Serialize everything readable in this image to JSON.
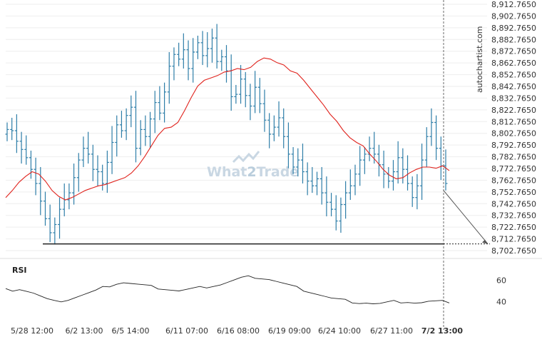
{
  "watermark": {
    "brand": "autochartist.com",
    "text_a": "What",
    "text_b": "2",
    "text_c": "Trade",
    "color": "#c9d7e3"
  },
  "rsi_panel": {
    "label": "RSI",
    "ticks": [
      "60",
      "40"
    ],
    "values": [
      60,
      40
    ]
  },
  "colors": {
    "candle": "#2e7ea8",
    "ma": "#e0231d",
    "rsi": "#222222",
    "support": "#222222",
    "arrow": "#555555",
    "grid": "#eeeeee",
    "axis_text": "#333333"
  },
  "chart_data": [
    {
      "type": "line",
      "title": "",
      "xlabel": "",
      "ylabel": "",
      "price_type": "ohlc-bars",
      "ylim": [
        8702.765,
        8912.765
      ],
      "y_ticks": [
        "8,912.7650",
        "8,902.7650",
        "8,892.7650",
        "8,882.7650",
        "8,872.7650",
        "8,862.7650",
        "8,852.7650",
        "8,842.7650",
        "8,832.7650",
        "8,822.7650",
        "8,812.7650",
        "8,802.7650",
        "8,792.7650",
        "8,782.7650",
        "8,772.7650",
        "8,762.7650",
        "8,752.7650",
        "8,742.7650",
        "8,732.7650",
        "8,722.7650",
        "8,712.7650",
        "8,702.7650"
      ],
      "x_ticks": [
        "5/28 12:00",
        "6/2 13:00",
        "6/5 14:00",
        "6/11 07:00",
        "6/16 08:00",
        "6/19 09:00",
        "6/24 10:00",
        "6/27 11:00",
        "7/2 13:00"
      ],
      "highlighted_x_tick": "7/2 13:00",
      "support_level": 8708.5,
      "projection": {
        "from": 8754,
        "to": 8708.5
      },
      "series": [
        {
          "values": [
            8806,
            8805,
            8796,
            8789,
            8782,
            8772,
            8760,
            8745,
            8730,
            8718,
            8725,
            8738,
            8746,
            8752,
            8765,
            8780,
            8790,
            8785,
            8772,
            8770,
            8760,
            8778,
            8795,
            8810,
            8805,
            8818,
            8825,
            8790,
            8806,
            8800,
            8815,
            8829,
            8820,
            8838,
            8860,
            8870,
            8866,
            8874,
            8858,
            8872,
            8880,
            8869,
            8875,
            8884,
            8864,
            8868,
            8856,
            8834,
            8836,
            8849,
            8835,
            8826,
            8842,
            8828,
            8814,
            8802,
            8808,
            8816,
            8800,
            8785,
            8774,
            8780,
            8770,
            8762,
            8758,
            8764,
            8752,
            8744,
            8738,
            8728,
            8742,
            8752,
            8758,
            8768,
            8780,
            8785,
            8790,
            8785,
            8776,
            8768,
            8762,
            8770,
            8782,
            8772,
            8760,
            8748,
            8758,
            8780,
            8800,
            8812,
            8790,
            8775,
            8760
          ]
        },
        {
          "values": [
            8748,
            8754,
            8761,
            8766,
            8770,
            8768,
            8762,
            8754,
            8749,
            8746,
            8748,
            8751,
            8754,
            8756,
            8758,
            8759,
            8761,
            8763,
            8765,
            8769,
            8775,
            8783,
            8792,
            8801,
            8807,
            8808,
            8812,
            8822,
            8833,
            8843,
            8848,
            8850,
            8852,
            8855,
            8856,
            8858,
            8857,
            8859,
            8864,
            8867,
            8866,
            8863,
            8861,
            8856,
            8854,
            8848,
            8841,
            8834,
            8827,
            8819,
            8813,
            8805,
            8799,
            8795,
            8792,
            8785,
            8779,
            8772,
            8767,
            8764,
            8765,
            8769,
            8772,
            8774,
            8774,
            8773,
            8775,
            8771
          ]
        },
        {
          "values": [
            51,
            51,
            52,
            50,
            48,
            45,
            42,
            40,
            41,
            42,
            44,
            46,
            48,
            50,
            53,
            55,
            57,
            58,
            57,
            56,
            55,
            54,
            53,
            52,
            51,
            50,
            51,
            52,
            53,
            54,
            55,
            56,
            58,
            60,
            62,
            63,
            63,
            62,
            61,
            59,
            57,
            55,
            53,
            51,
            49,
            47,
            45,
            43,
            42,
            41,
            40,
            39,
            39,
            38,
            38,
            39,
            40,
            40,
            40,
            39,
            39,
            40,
            40,
            40,
            40
          ]
        }
      ],
      "y2_ticks": [
        "60",
        "40"
      ]
    }
  ]
}
